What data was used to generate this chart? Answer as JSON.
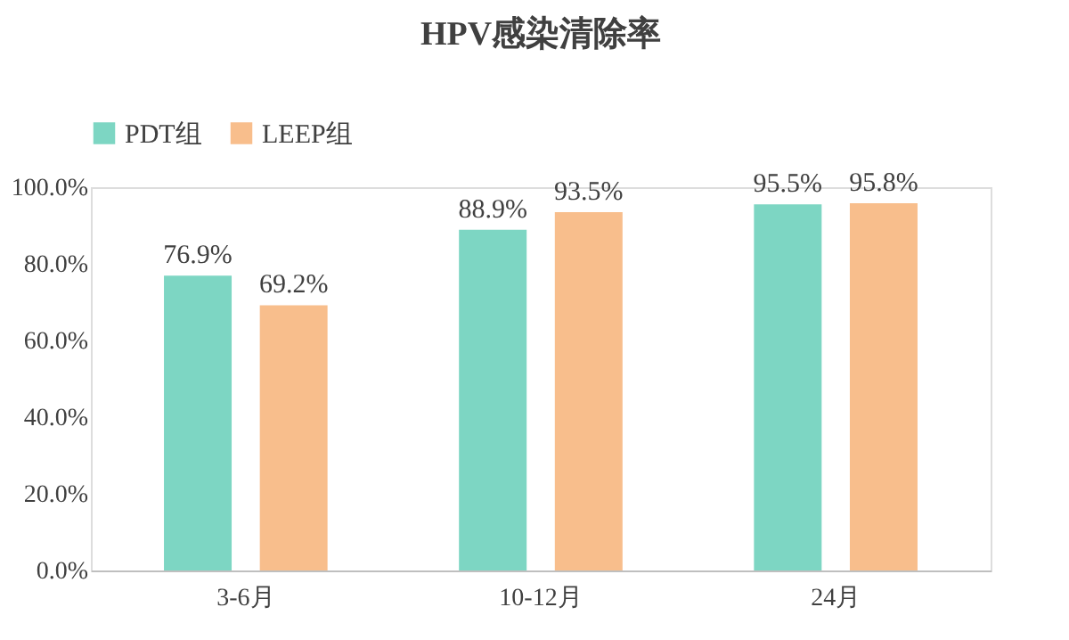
{
  "chart_data": {
    "type": "bar",
    "title": "HPV感染清除率",
    "categories": [
      "3-6月",
      "10-12月",
      "24月"
    ],
    "series": [
      {
        "name": "PDT组",
        "color": "#7dd6c3",
        "values": [
          76.9,
          88.9,
          95.5
        ],
        "value_labels": [
          "76.9%",
          "88.9%",
          "95.5%"
        ]
      },
      {
        "name": "LEEP组",
        "color": "#f8be8c",
        "values": [
          69.2,
          93.5,
          95.8
        ],
        "value_labels": [
          "69.2%",
          "93.5%",
          "95.8%"
        ]
      }
    ],
    "ylim": [
      0,
      100
    ],
    "yticks": [
      {
        "value": 0,
        "label": "0.0%"
      },
      {
        "value": 20,
        "label": "20.0%"
      },
      {
        "value": 40,
        "label": "40.0%"
      },
      {
        "value": 60,
        "label": "60.0%"
      },
      {
        "value": 80,
        "label": "80.0%"
      },
      {
        "value": 100,
        "label": "100.0%"
      }
    ],
    "grid": false,
    "legend": "top left"
  }
}
